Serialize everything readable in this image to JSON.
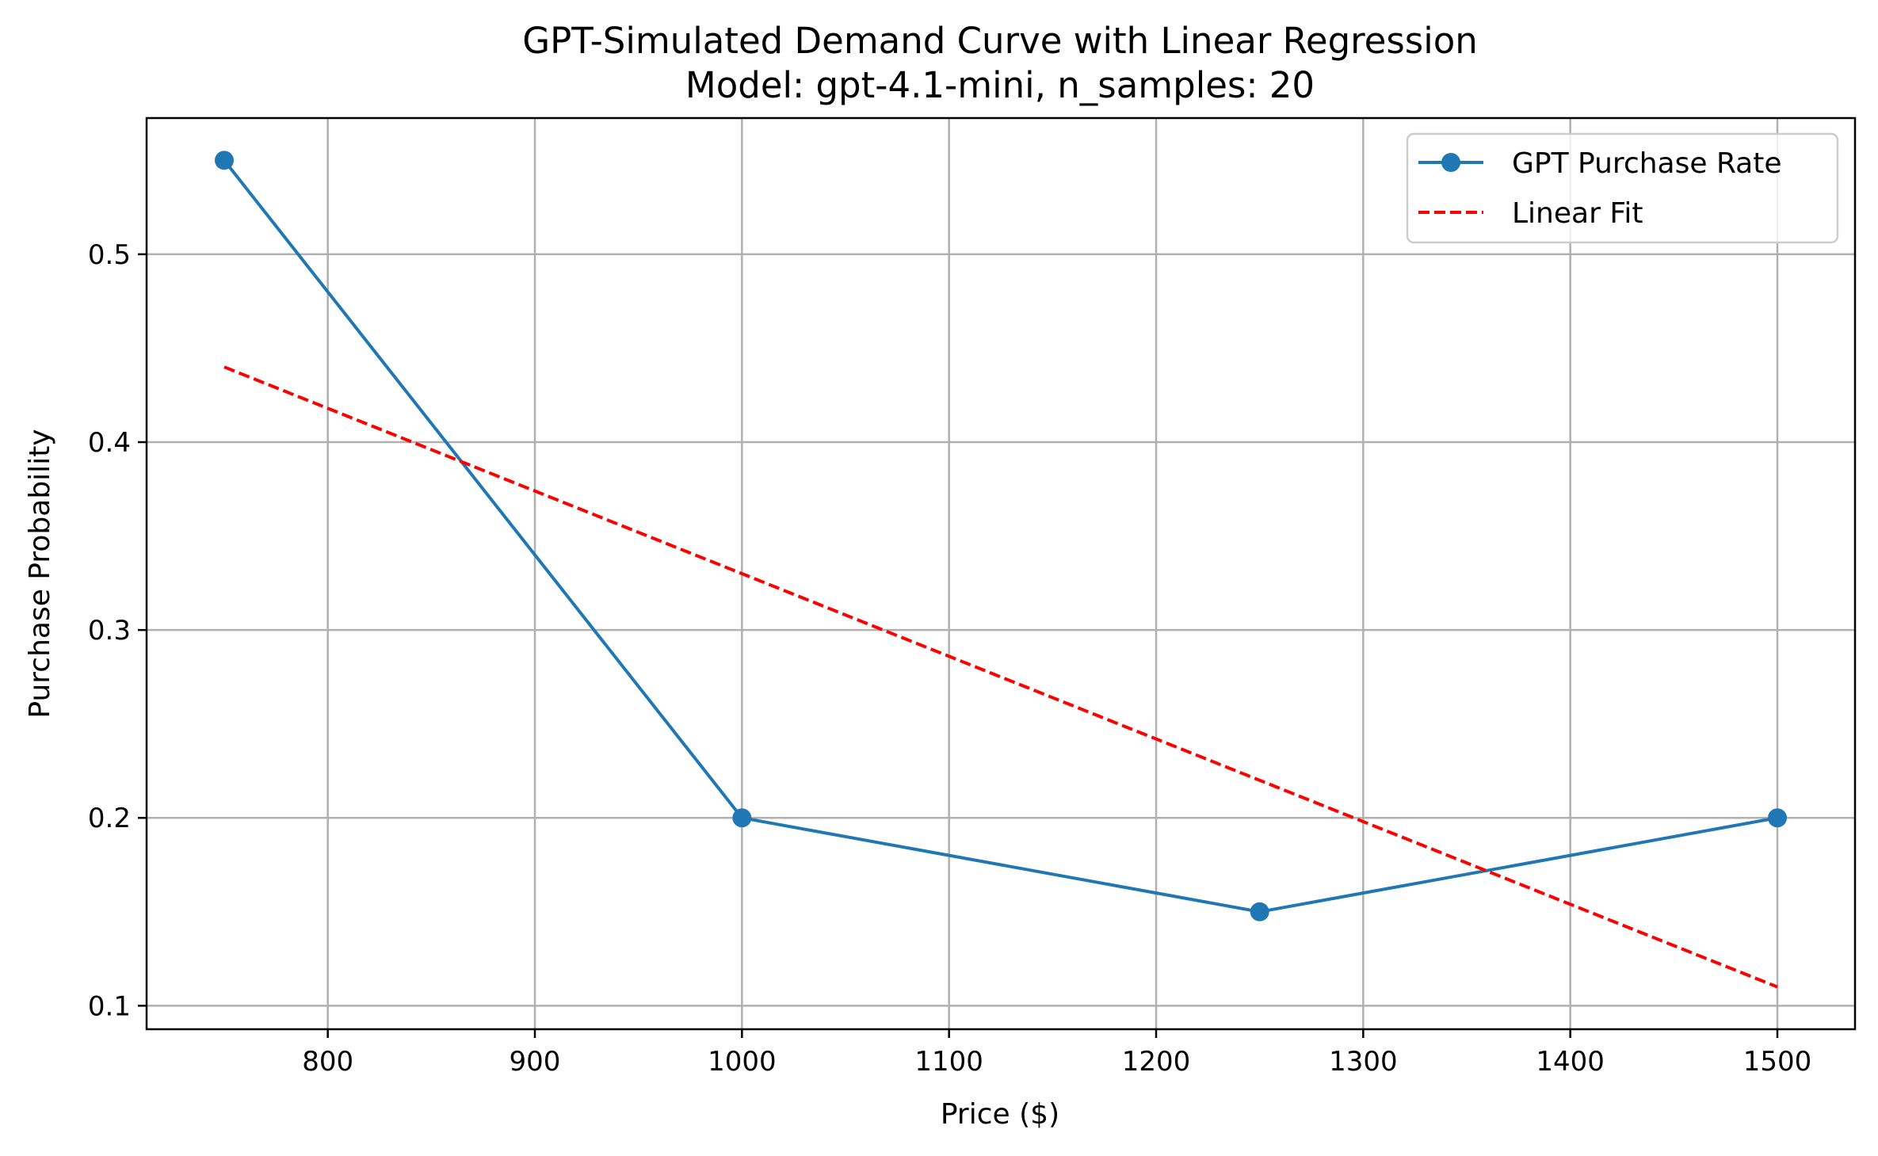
{
  "chart_data": {
    "type": "line",
    "title": "GPT-Simulated Demand Curve with Linear Regression",
    "subtitle": "Model: gpt-4.1-mini, n_samples: 20",
    "xlabel": "Price ($)",
    "ylabel": "Purchase Probability",
    "xlim": [
      712.5,
      1537.5
    ],
    "ylim": [
      0.0875,
      0.5725
    ],
    "xticks": [
      800,
      900,
      1000,
      1100,
      1200,
      1300,
      1400,
      1500
    ],
    "yticks": [
      0.1,
      0.2,
      0.3,
      0.4,
      0.5
    ],
    "xtick_labels": [
      "800",
      "900",
      "1000",
      "1100",
      "1200",
      "1300",
      "1400",
      "1500"
    ],
    "ytick_labels": [
      "0.1",
      "0.2",
      "0.3",
      "0.4",
      "0.5"
    ],
    "grid": true,
    "legend_position": "top-right",
    "series": [
      {
        "name": "GPT Purchase Rate",
        "x": [
          750,
          1000,
          1250,
          1500
        ],
        "y": [
          0.55,
          0.2,
          0.15,
          0.2
        ],
        "color": "#1f77b4",
        "style": "solid",
        "marker": "circle"
      },
      {
        "name": "Linear Fit",
        "x": [
          750,
          1500
        ],
        "y": [
          0.44,
          0.11
        ],
        "color": "#ff0000",
        "style": "dashed",
        "marker": "none"
      }
    ]
  }
}
